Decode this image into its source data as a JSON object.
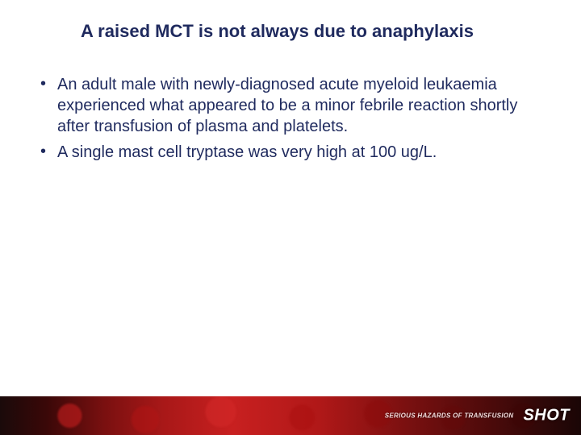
{
  "slide": {
    "title": "A raised MCT is not always due to anaphylaxis",
    "title_color": "#1f2a5e",
    "title_fontsize": 22,
    "bullets": [
      {
        "text": "An adult male with newly-diagnosed acute myeloid leukaemia experienced what appeared to be a minor febrile reaction shortly after transfusion of plasma and platelets."
      },
      {
        "text": "A single mast cell tryptase was very high at 100 ug/L."
      }
    ],
    "bullet_color": "#1f2a5e",
    "bullet_fontsize": 20,
    "background_color": "#ffffff"
  },
  "footer": {
    "tagline": "SERIOUS HAZARDS OF TRANSFUSION",
    "logo": "SHOT",
    "band_colors": [
      "#1a0a0a",
      "#3a0808",
      "#7a1010",
      "#a81818",
      "#c82020",
      "#b01818",
      "#4a0a0a"
    ],
    "tagline_color": "#f5dede",
    "logo_color": "#ffffff"
  }
}
